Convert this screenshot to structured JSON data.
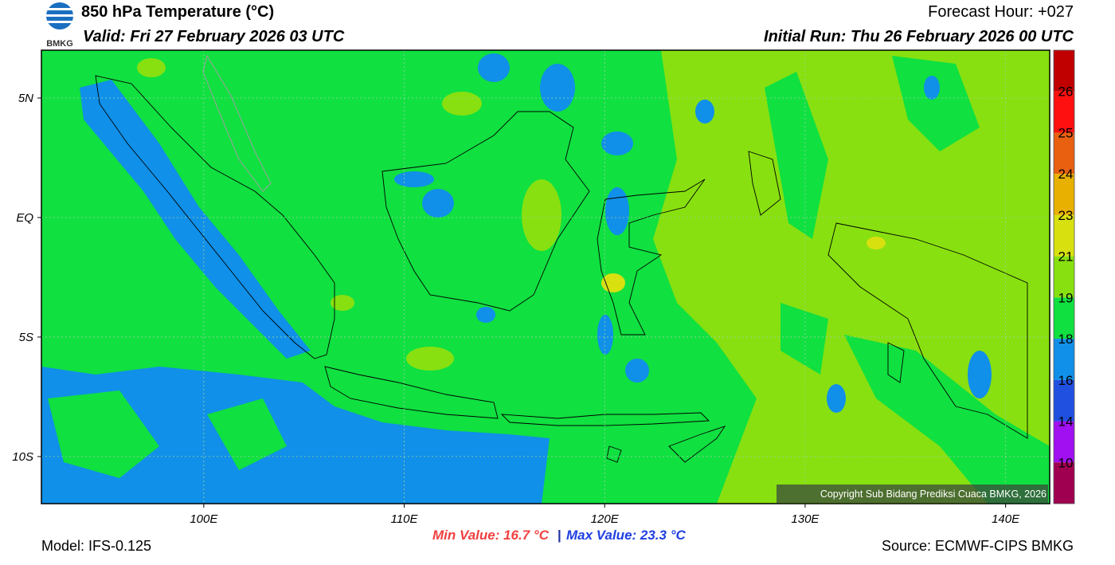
{
  "header": {
    "title": "850 hPa Temperature (°C)",
    "valid": "Valid: Fri 27 February 2026 03 UTC",
    "forecast": "Forecast Hour: +027",
    "initial": "Initial Run: Thu 26 February 2026 00 UTC",
    "logo": "BMKG"
  },
  "map": {
    "lon_extent": [
      91.9,
      142.2
    ],
    "lat_extent": [
      -11.97,
      7
    ],
    "lon_ticks": [
      {
        "value": 100,
        "label": "100E"
      },
      {
        "value": 110,
        "label": "110E"
      },
      {
        "value": 120,
        "label": "120E"
      },
      {
        "value": 130,
        "label": "130E"
      },
      {
        "value": 140,
        "label": "140E"
      }
    ],
    "lat_ticks": [
      {
        "value": 5,
        "label": "5N"
      },
      {
        "value": 0,
        "label": "EQ"
      },
      {
        "value": -5,
        "label": "5S"
      },
      {
        "value": -10,
        "label": "10S"
      }
    ],
    "copyright": "Copyright Sub Bidang Prediksi Cuaca BMKG, 2026"
  },
  "colorbar": {
    "ticks": [
      26,
      25,
      24,
      23,
      21,
      19,
      18,
      16,
      14,
      10
    ],
    "colors": [
      "#c00000",
      "#ff1010",
      "#e86010",
      "#e8b000",
      "#d8e010",
      "#88e010",
      "#10e040",
      "#1090e8",
      "#2050e0",
      "#a010f0",
      "#a00050"
    ]
  },
  "footer": {
    "model": "Model: IFS-0.125",
    "min": "Min Value: 16.7 °C",
    "max": "Max Value: 23.3 °C",
    "source": "Source: ECMWF-CIPS BMKG"
  }
}
